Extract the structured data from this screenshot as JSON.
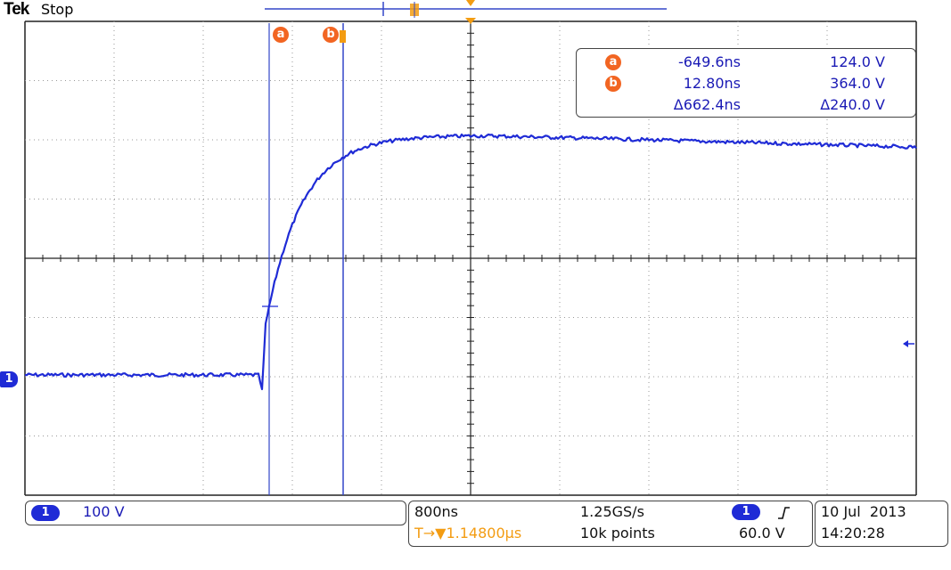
{
  "header": {
    "brand": "Tek",
    "acquisition_state": "Stop"
  },
  "cursors": {
    "a_label": "a",
    "b_label": "b"
  },
  "readout": {
    "a": {
      "label": "a",
      "time": "-649.6ns",
      "voltage": "124.0 V"
    },
    "b": {
      "label": "b",
      "time": "12.80ns",
      "voltage": "364.0 V"
    },
    "delta": {
      "time": "Δ662.4ns",
      "voltage": "Δ240.0 V"
    }
  },
  "channel": {
    "number": "1",
    "marker_label": "1",
    "scale": "100 V"
  },
  "timebase": {
    "scale": "800ns",
    "sample_rate": "1.25GS/s",
    "trigger_position_prefix": "T→▼",
    "trigger_position": "1.14800µs",
    "record_length": "10k points"
  },
  "trigger": {
    "source": "1",
    "slope_icon": "rising-edge-icon",
    "level": "60.0 V"
  },
  "datetime": {
    "date": "10 Jul  2013",
    "time": "14:20:28"
  },
  "colors": {
    "trace": "#1f2bd6",
    "cursor": "#3346c8",
    "accent_orange": "#f26522",
    "trigger_orange": "#f39c12",
    "text_blue": "#1a1ab5"
  }
}
